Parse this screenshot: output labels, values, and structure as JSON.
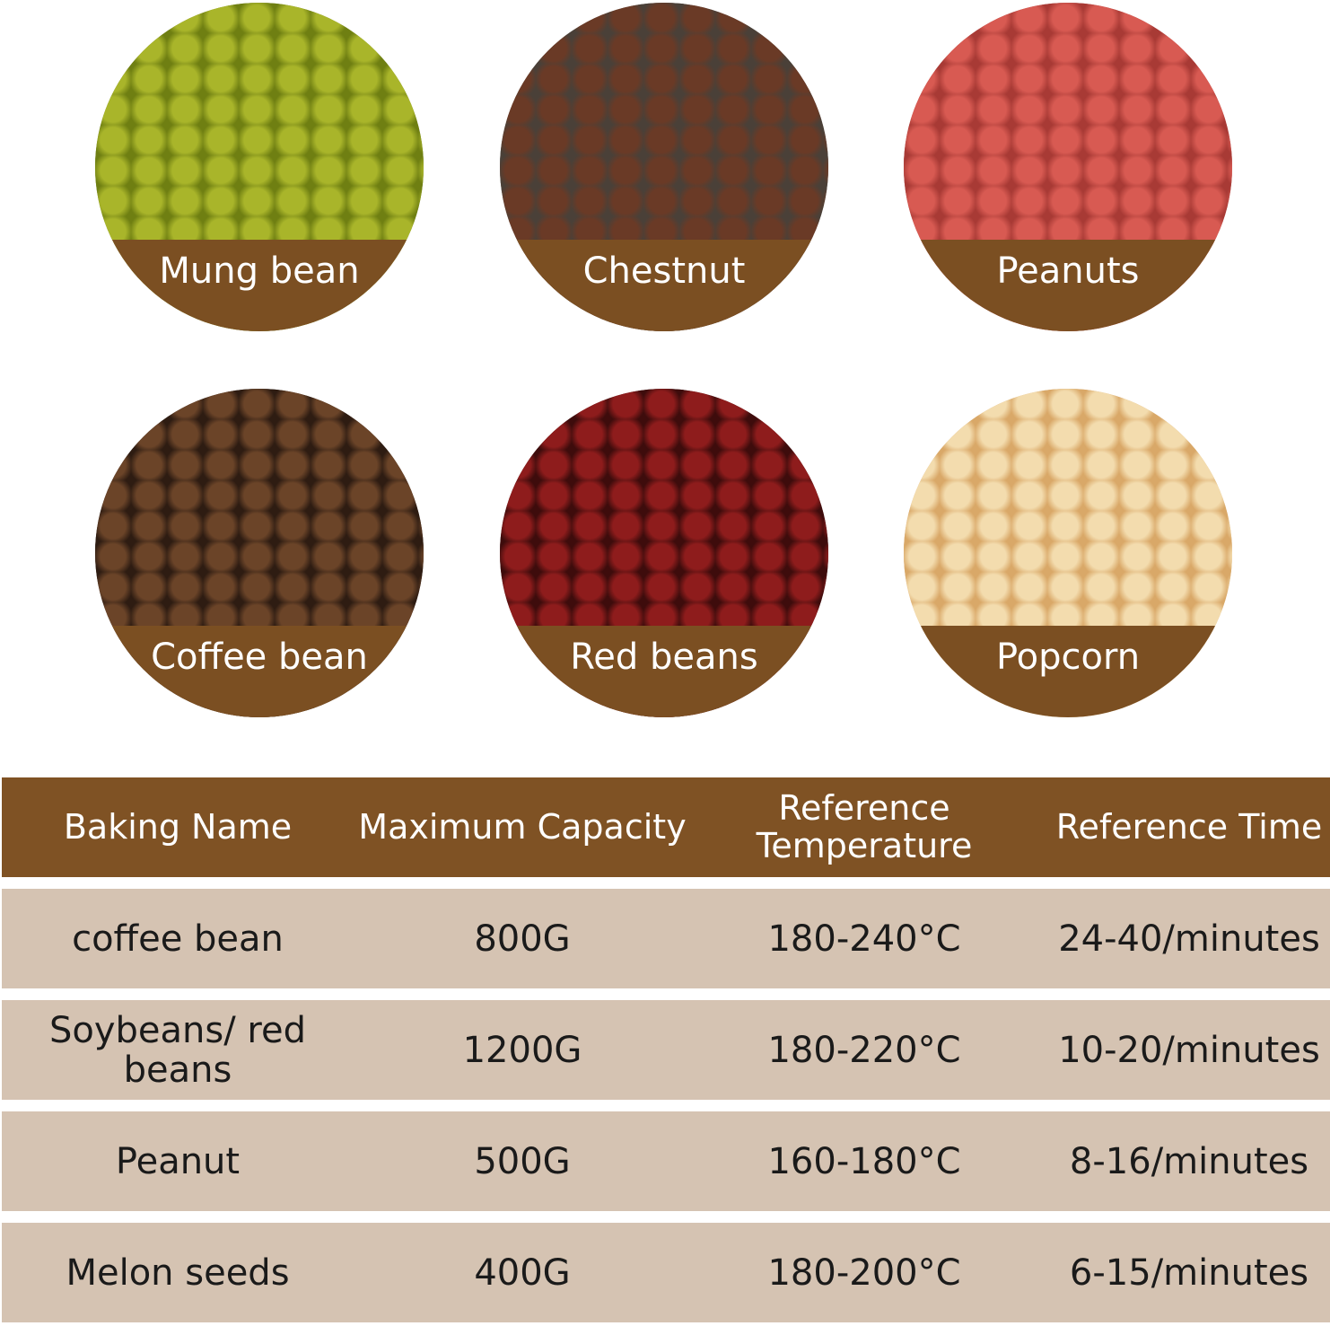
{
  "foods": [
    {
      "label": "Mung bean",
      "colors": [
        "#a9b52a",
        "#6f7f12"
      ]
    },
    {
      "label": "Chestnut",
      "colors": [
        "#6a3a26",
        "#4a4038"
      ]
    },
    {
      "label": "Peanuts",
      "colors": [
        "#d85a52",
        "#a83a35"
      ]
    },
    {
      "label": "Coffee bean",
      "colors": [
        "#6b4428",
        "#2e1c12"
      ]
    },
    {
      "label": "Red beans",
      "colors": [
        "#8e1c1c",
        "#3e0c0c"
      ]
    },
    {
      "label": "Popcorn",
      "colors": [
        "#f3dcae",
        "#d9a868"
      ]
    }
  ],
  "table": {
    "headers": [
      "Baking Name",
      "Maximum Capacity",
      "Reference Temperature",
      "Reference Time"
    ],
    "rows": [
      [
        "coffee bean",
        "800G",
        "180-240°C",
        "24-40/minutes"
      ],
      [
        "Soybeans/ red beans",
        "1200G",
        "180-220°C",
        "10-20/minutes"
      ],
      [
        "Peanut",
        "500G",
        "160-180°C",
        "8-16/minutes"
      ],
      [
        "Melon seeds",
        "400G",
        "180-200°C",
        "6-15/minutes"
      ]
    ]
  },
  "colors": {
    "header": "#7f5224",
    "row": "#d5c3b2",
    "band": "#7b4f22"
  }
}
